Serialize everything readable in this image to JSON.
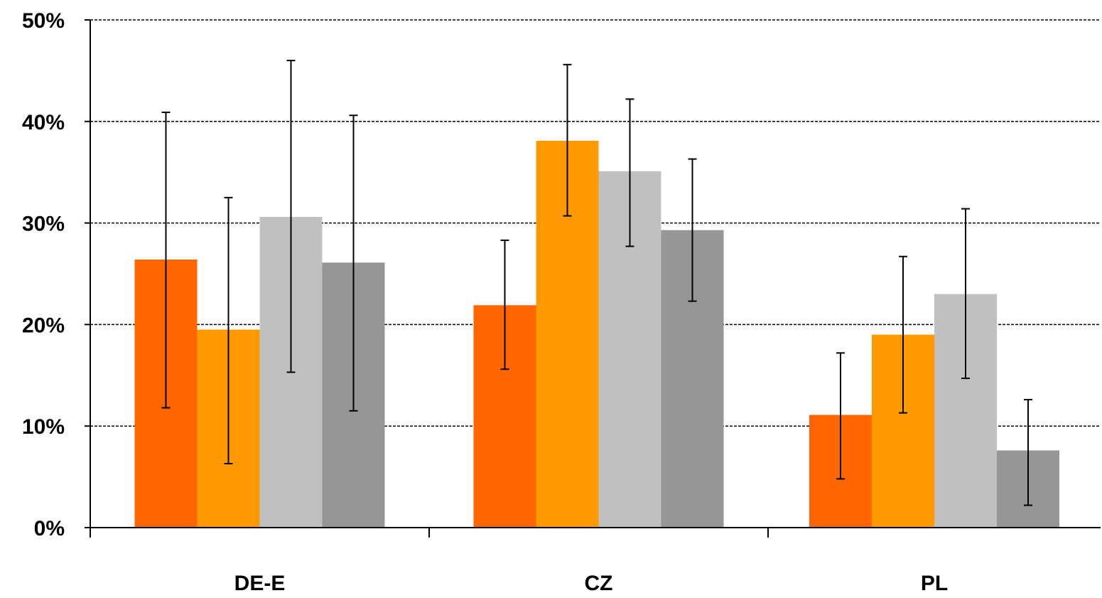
{
  "chart_data": {
    "type": "bar",
    "title": "",
    "xlabel": "",
    "ylabel": "",
    "ylim": [
      0,
      50
    ],
    "yticks": [
      0,
      10,
      20,
      30,
      40,
      50
    ],
    "ytick_labels": [
      "0%",
      "10%",
      "20%",
      "30%",
      "40%",
      "50%"
    ],
    "grid": "horizontal-dashed",
    "legend": "none",
    "categories": [
      "DE-E",
      "CZ",
      "PL"
    ],
    "series": [
      {
        "color": "#ff6600",
        "values": [
          26.4,
          21.9,
          11.1
        ],
        "error_low": [
          11.8,
          15.6,
          4.8
        ],
        "error_high": [
          40.9,
          28.3,
          17.2
        ]
      },
      {
        "color": "#ff9900",
        "values": [
          19.5,
          38.1,
          19.0
        ],
        "error_low": [
          6.3,
          30.7,
          11.3
        ],
        "error_high": [
          32.5,
          45.6,
          26.7
        ]
      },
      {
        "color": "#c0c0c0",
        "values": [
          30.6,
          35.1,
          23.0
        ],
        "error_low": [
          15.3,
          27.7,
          14.7
        ],
        "error_high": [
          46.0,
          42.2,
          31.4
        ]
      },
      {
        "color": "#969696",
        "values": [
          26.1,
          29.3,
          7.6
        ],
        "error_low": [
          11.5,
          22.3,
          2.2
        ],
        "error_high": [
          40.6,
          36.3,
          12.6
        ]
      }
    ]
  }
}
